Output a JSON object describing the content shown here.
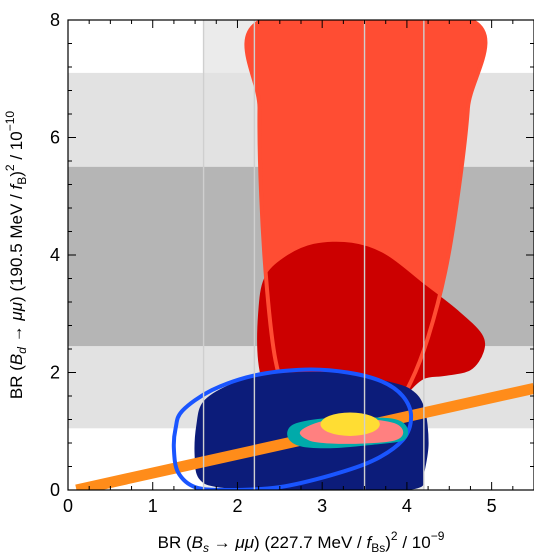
{
  "chart_data": {
    "type": "area",
    "title": "",
    "xlabel": "BR (B_s → μμ) (227.7 MeV / f_Bs)^2 / 10^-9",
    "ylabel": "BR (B_d → μμ) (190.5 MeV / f_B)^2 / 10^-10",
    "xlim": [
      0,
      5.5
    ],
    "ylim": [
      0,
      8
    ],
    "x_ticks": [
      "0",
      "1",
      "2",
      "3",
      "4",
      "5"
    ],
    "y_ticks": [
      "0",
      "2",
      "4",
      "6",
      "8"
    ],
    "xlabel_parts": {
      "pre": "BR (",
      "var": "B",
      "sub": "s",
      "arrow": " → ",
      "mu": "μμ",
      "mid": ") (227.7 MeV / ",
      "f": "f",
      "fsub": "Bs",
      "close": ")",
      "sq": "2",
      "tail": " / 10",
      "exp": "−9"
    },
    "ylabel_parts": {
      "pre": "BR (",
      "var": "B",
      "sub": "d",
      "arrow": " → ",
      "mu": "μμ",
      "mid": ") (190.5 MeV / ",
      "f": "f",
      "fsub": "B",
      "close": ")",
      "sq": "2",
      "tail": " / 10",
      "exp": "−10"
    },
    "bands": [
      {
        "axis": "x",
        "range": [
          1.6,
          4.2
        ],
        "color": "#ebebeb"
      },
      {
        "axis": "y",
        "range": [
          1.05,
          7.1
        ],
        "color": "#e2e2e2"
      },
      {
        "axis": "y",
        "range": [
          2.45,
          5.5
        ],
        "color": "#b5b5b5"
      }
    ],
    "vertical_lines": [
      1.6,
      2.2,
      3.5,
      4.2
    ],
    "sm_line": {
      "x0": 0.1,
      "y0": 0.0,
      "x1": 5.5,
      "y1": 1.73,
      "color": "#ff8c1a"
    },
    "regions": [
      {
        "name": "red-large",
        "color": "#ff4d33",
        "outline": "#ff4d33",
        "outline_only": false,
        "points": [
          [
            2.3,
            8
          ],
          [
            4.75,
            8
          ],
          [
            4.72,
            6.5
          ],
          [
            4.6,
            5.0
          ],
          [
            4.45,
            3.7
          ],
          [
            4.25,
            2.6
          ],
          [
            4.05,
            1.85
          ],
          [
            3.85,
            1.4
          ],
          [
            3.55,
            1.15
          ],
          [
            3.2,
            1.05
          ],
          [
            2.85,
            1.15
          ],
          [
            2.62,
            1.45
          ],
          [
            2.45,
            2.2
          ],
          [
            2.35,
            3.4
          ],
          [
            2.28,
            5.0
          ],
          [
            2.26,
            6.5
          ]
        ]
      },
      {
        "name": "darkred",
        "color": "#cc0000",
        "outline": "#cc0000",
        "outline_only": false,
        "points": [
          [
            2.32,
            3.6
          ],
          [
            2.55,
            3.95
          ],
          [
            2.9,
            4.18
          ],
          [
            3.35,
            4.2
          ],
          [
            3.75,
            4.0
          ],
          [
            4.2,
            3.5
          ],
          [
            4.6,
            3.05
          ],
          [
            4.88,
            2.65
          ],
          [
            4.9,
            2.35
          ],
          [
            4.75,
            2.05
          ],
          [
            4.45,
            1.95
          ],
          [
            4.2,
            1.9
          ],
          [
            4.0,
            1.65
          ],
          [
            3.75,
            1.3
          ],
          [
            3.45,
            1.1
          ],
          [
            3.1,
            1.05
          ],
          [
            2.8,
            1.12
          ],
          [
            2.55,
            1.3
          ],
          [
            2.35,
            1.65
          ],
          [
            2.25,
            2.2
          ],
          [
            2.25,
            3.0
          ]
        ]
      },
      {
        "name": "red-outline",
        "color": "none",
        "outline": "#ff4d33",
        "outline_only": true,
        "points": [
          [
            2.26,
            6.5
          ],
          [
            2.28,
            5.0
          ],
          [
            2.35,
            3.4
          ],
          [
            2.45,
            2.2
          ],
          [
            2.62,
            1.45
          ],
          [
            2.85,
            1.15
          ],
          [
            3.2,
            1.05
          ],
          [
            3.55,
            1.15
          ],
          [
            3.85,
            1.4
          ],
          [
            4.05,
            1.85
          ],
          [
            4.25,
            2.6
          ],
          [
            4.45,
            3.7
          ],
          [
            4.6,
            5.0
          ],
          [
            4.72,
            6.5
          ],
          [
            4.75,
            8
          ],
          [
            2.3,
            8
          ]
        ]
      },
      {
        "name": "navy",
        "color": "#0c1c7a",
        "outline": "#0c1c7a",
        "outline_only": false,
        "points": [
          [
            1.6,
            1.5
          ],
          [
            1.9,
            1.78
          ],
          [
            2.3,
            1.95
          ],
          [
            2.8,
            2.0
          ],
          [
            3.3,
            1.98
          ],
          [
            3.75,
            1.85
          ],
          [
            4.05,
            1.7
          ],
          [
            4.2,
            1.4
          ],
          [
            4.25,
            0.8
          ],
          [
            4.2,
            0.3
          ],
          [
            4.15,
            0.05
          ],
          [
            3.7,
            0.0
          ],
          [
            2.6,
            0.0
          ],
          [
            1.8,
            0.05
          ],
          [
            1.55,
            0.2
          ],
          [
            1.5,
            0.6
          ],
          [
            1.52,
            1.1
          ]
        ]
      },
      {
        "name": "blue-outline",
        "color": "none",
        "outline": "#1a55ff",
        "outline_only": true,
        "points": [
          [
            1.35,
            1.35
          ],
          [
            1.7,
            1.7
          ],
          [
            2.2,
            1.95
          ],
          [
            2.8,
            2.05
          ],
          [
            3.3,
            2.0
          ],
          [
            3.7,
            1.85
          ],
          [
            3.95,
            1.6
          ],
          [
            4.05,
            1.25
          ],
          [
            3.95,
            0.85
          ],
          [
            3.6,
            0.5
          ],
          [
            3.1,
            0.25
          ],
          [
            2.5,
            0.05
          ],
          [
            1.9,
            0.0
          ],
          [
            1.5,
            0.05
          ],
          [
            1.3,
            0.3
          ],
          [
            1.25,
            0.7
          ],
          [
            1.27,
            1.05
          ]
        ]
      },
      {
        "name": "teal",
        "color": "#00aaaa",
        "outline": "#00aaaa",
        "outline_only": false,
        "points": [
          [
            2.65,
            1.1
          ],
          [
            2.95,
            1.2
          ],
          [
            3.4,
            1.23
          ],
          [
            3.85,
            1.2
          ],
          [
            4.0,
            1.05
          ],
          [
            3.95,
            0.85
          ],
          [
            3.6,
            0.78
          ],
          [
            3.1,
            0.72
          ],
          [
            2.75,
            0.75
          ],
          [
            2.6,
            0.9
          ]
        ]
      },
      {
        "name": "pink",
        "color": "#ff8080",
        "outline": "#ff8080",
        "outline_only": false,
        "points": [
          [
            2.75,
            1.0
          ],
          [
            3.05,
            1.18
          ],
          [
            3.5,
            1.2
          ],
          [
            3.85,
            1.13
          ],
          [
            3.95,
            0.98
          ],
          [
            3.85,
            0.85
          ],
          [
            3.5,
            0.8
          ],
          [
            3.1,
            0.8
          ],
          [
            2.85,
            0.85
          ]
        ]
      },
      {
        "name": "yellow",
        "color": "#ffdd33",
        "outline": "#ffdd33",
        "outline_only": false,
        "ellipse": {
          "cx": 3.33,
          "cy": 1.12,
          "rx": 0.35,
          "ry": 0.2
        }
      }
    ]
  }
}
